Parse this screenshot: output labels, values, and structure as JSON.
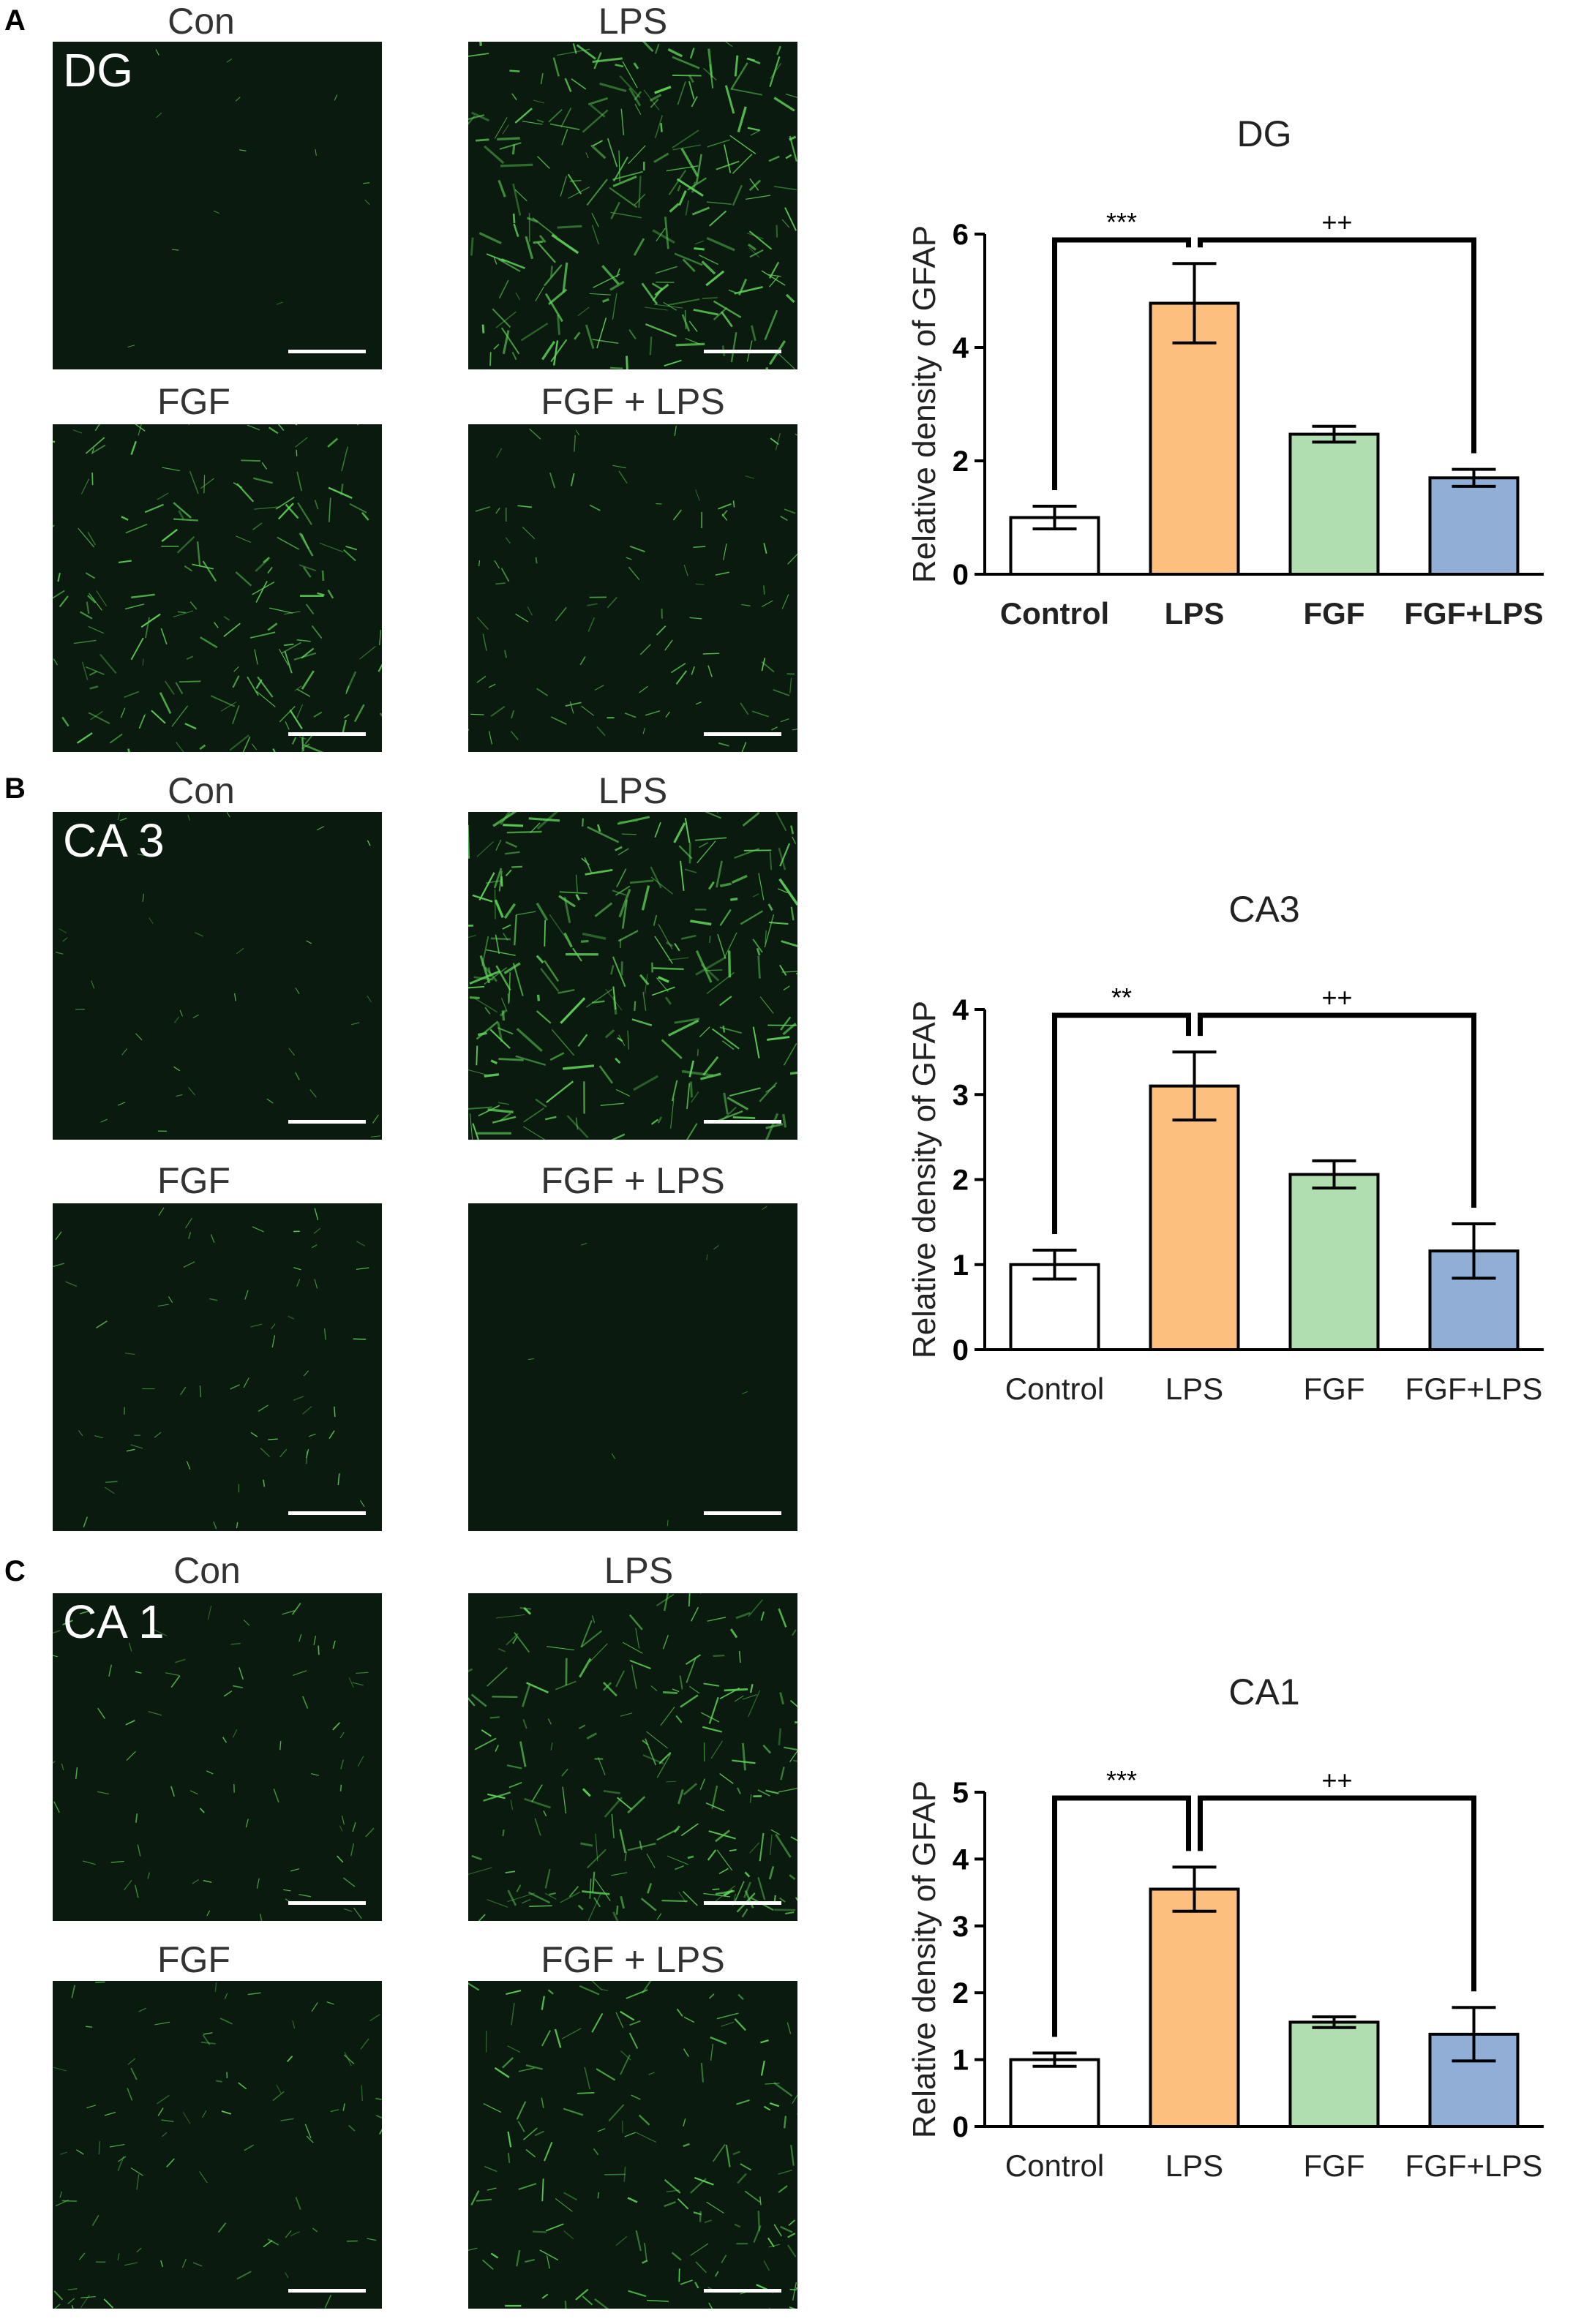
{
  "panels": [
    {
      "letter": "A",
      "region_label": "DG",
      "micro_labels": [
        "Con",
        "LPS",
        "FGF",
        "FGF + LPS"
      ],
      "micro_intensity": [
        0.05,
        0.95,
        0.7,
        0.4
      ]
    },
    {
      "letter": "B",
      "region_label": "CA 3",
      "micro_labels": [
        "Con",
        "LPS",
        "FGF",
        "FGF + LPS"
      ],
      "micro_intensity": [
        0.15,
        1.0,
        0.25,
        0.03
      ]
    },
    {
      "letter": "C",
      "region_label": "CA 1",
      "micro_labels": [
        "Con",
        "LPS",
        "FGF",
        "FGF + LPS"
      ],
      "micro_intensity": [
        0.3,
        0.8,
        0.35,
        0.6
      ]
    }
  ],
  "colors": {
    "Control": "#ffffff",
    "LPS": "#fdbf7e",
    "FGF": "#b0deb1",
    "FGF+LPS": "#90aed6"
  },
  "chart_data": [
    {
      "type": "bar",
      "title": "DG",
      "ylabel": "Relative density of GFAP",
      "categories": [
        "Control",
        "LPS",
        "FGF",
        "FGF+LPS"
      ],
      "values": [
        1.0,
        4.78,
        2.47,
        1.7
      ],
      "errors": [
        0.2,
        0.7,
        0.14,
        0.15
      ],
      "ylim": [
        0,
        6
      ],
      "yticks": [
        "0",
        "2",
        "4",
        "6"
      ],
      "bold_labels": true,
      "annotations": [
        {
          "text": "***",
          "from": "Control",
          "to": "LPS"
        },
        {
          "text": "++",
          "from": "LPS",
          "to": "FGF+LPS"
        }
      ]
    },
    {
      "type": "bar",
      "title": "CA3",
      "ylabel": "Relative density of GFAP",
      "categories": [
        "Control",
        "LPS",
        "FGF",
        "FGF+LPS"
      ],
      "values": [
        1.0,
        3.1,
        2.06,
        1.16
      ],
      "errors": [
        0.17,
        0.4,
        0.16,
        0.32
      ],
      "ylim": [
        0,
        4
      ],
      "yticks": [
        "0",
        "1",
        "2",
        "3",
        "4"
      ],
      "bold_labels": false,
      "annotations": [
        {
          "text": "**",
          "from": "Control",
          "to": "LPS"
        },
        {
          "text": "++",
          "from": "LPS",
          "to": "FGF+LPS"
        }
      ]
    },
    {
      "type": "bar",
      "title": "CA1",
      "ylabel": "Relative density of GFAP",
      "categories": [
        "Control",
        "LPS",
        "FGF",
        "FGF+LPS"
      ],
      "values": [
        1.0,
        3.55,
        1.56,
        1.38
      ],
      "errors": [
        0.1,
        0.33,
        0.08,
        0.4
      ],
      "ylim": [
        0,
        5
      ],
      "yticks": [
        "0",
        "1",
        "2",
        "3",
        "4",
        "5"
      ],
      "bold_labels": false,
      "annotations": [
        {
          "text": "***",
          "from": "Control",
          "to": "LPS"
        },
        {
          "text": "++",
          "from": "LPS",
          "to": "FGF+LPS"
        }
      ]
    }
  ]
}
